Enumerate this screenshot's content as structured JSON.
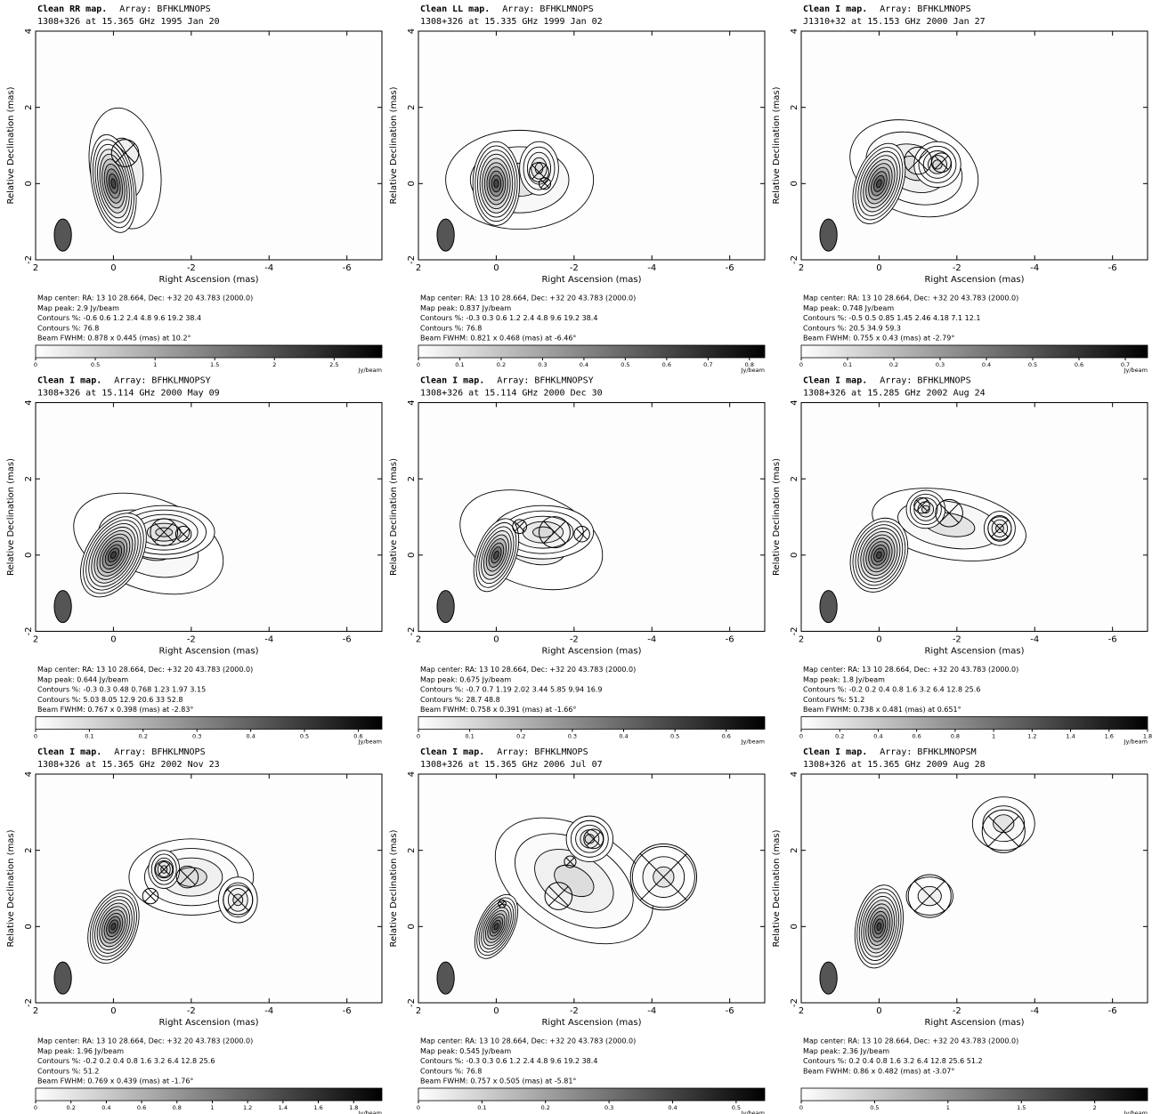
{
  "chart_data": [
    {
      "type": "contour",
      "title": "Clean RR map.",
      "array": "Array:  BFHKLMNOPS",
      "subtitle": "1308+326 at 15.365 GHz 1995 Jan 20",
      "xlabel": "Right Ascension  (mas)",
      "ylabel": "Relative Declination  (mas)",
      "xlim": [
        2,
        -6.9
      ],
      "ylim": [
        -2,
        4
      ],
      "xticks": [
        2,
        0,
        -2,
        -4,
        -6
      ],
      "yticks": [
        -2,
        0,
        2,
        4
      ],
      "info": [
        "Map center:  RA: 13 10 28.664,  Dec: +32 20 43.783 (2000.0)",
        "Map peak: 2.9 Jy/beam",
        "Contours %: -0.6 0.6 1.2 2.4 4.8 9.6 19.2 38.4",
        "Contours %: 76.8",
        "Beam FWHM: 0.878 x 0.445 (mas) at 10.2°"
      ],
      "colorbar": {
        "clim": [
          0,
          2.9
        ],
        "ticks": [
          0,
          0.5,
          1,
          1.5,
          2,
          2.5
        ],
        "unit": "Jy/beam"
      }
    },
    {
      "type": "contour",
      "title": "Clean LL map.",
      "array": "Array:  BFHKLMNOPS",
      "subtitle": "1308+326 at 15.335 GHz 1999 Jan 02",
      "xlabel": "Right Ascension  (mas)",
      "ylabel": "Relative Declination  (mas)",
      "xlim": [
        2,
        -6.9
      ],
      "ylim": [
        -2,
        4
      ],
      "xticks": [
        2,
        0,
        -2,
        -4,
        -6
      ],
      "yticks": [
        -2,
        0,
        2,
        4
      ],
      "info": [
        "Map center:  RA: 13 10 28.664,  Dec: +32 20 43.783 (2000.0)",
        "Map peak: 0.837 Jy/beam",
        "Contours %: -0.3 0.3 0.6 1.2 2.4 4.8 9.6 19.2 38.4",
        "Contours %: 76.8",
        "Beam FWHM: 0.821 x 0.468 (mas) at -6.46°"
      ],
      "colorbar": {
        "clim": [
          0,
          0.837
        ],
        "ticks": [
          0,
          0.1,
          0.2,
          0.3,
          0.4,
          0.5,
          0.6,
          0.7,
          0.8
        ],
        "unit": "Jy/beam"
      }
    },
    {
      "type": "contour",
      "title": "Clean I map.",
      "array": "Array:  BFHKLMNOPS",
      "subtitle": "J1310+32 at 15.153 GHz 2000 Jan 27",
      "xlabel": "Right Ascension  (mas)",
      "ylabel": "Relative Declination  (mas)",
      "xlim": [
        2,
        -6.9
      ],
      "ylim": [
        -2,
        4
      ],
      "xticks": [
        2,
        0,
        -2,
        -4,
        -6
      ],
      "yticks": [
        -2,
        0,
        2,
        4
      ],
      "info": [
        "Map center:  RA: 13 10 28.664,  Dec: +32 20 43.783 (2000.0)",
        "Map peak: 0.748 Jy/beam",
        "Contours %: -0.5 0.5 0.85 1.45 2.46 4.18 7.1 12.1",
        "Contours %: 20.5 34.9 59.3",
        "Beam FWHM: 0.755 x 0.43 (mas) at -2.79°"
      ],
      "colorbar": {
        "clim": [
          0,
          0.748
        ],
        "ticks": [
          0,
          0.1,
          0.2,
          0.3,
          0.4,
          0.5,
          0.6,
          0.7
        ],
        "unit": "Jy/beam"
      }
    },
    {
      "type": "contour",
      "title": "Clean I map.",
      "array": "Array:  BFHKLMNOPSY",
      "subtitle": "1308+326 at 15.114 GHz 2000 May 09",
      "xlabel": "Right Ascension  (mas)",
      "ylabel": "Relative Declination  (mas)",
      "xlim": [
        2,
        -6.9
      ],
      "ylim": [
        -2,
        4
      ],
      "xticks": [
        2,
        0,
        -2,
        -4,
        -6
      ],
      "yticks": [
        -2,
        0,
        2,
        4
      ],
      "info": [
        "Map center:  RA: 13 10 28.664,  Dec: +32 20 43.783 (2000.0)",
        "Map peak: 0.644 Jy/beam",
        "Contours %: -0.3 0.3 0.48 0.768 1.23 1.97 3.15",
        "Contours %: 5.03 8.05 12.9 20.6 33 52.8",
        "Beam FWHM: 0.767 x 0.398 (mas) at -2.83°"
      ],
      "colorbar": {
        "clim": [
          0,
          0.644
        ],
        "ticks": [
          0,
          0.1,
          0.2,
          0.3,
          0.4,
          0.5,
          0.6
        ],
        "unit": "Jy/beam"
      }
    },
    {
      "type": "contour",
      "title": "Clean I map.",
      "array": "Array:  BFHKLMNOPSY",
      "subtitle": "1308+326 at 15.114 GHz 2000 Dec 30",
      "xlabel": "Right Ascension  (mas)",
      "ylabel": "Relative Declination  (mas)",
      "xlim": [
        2,
        -6.9
      ],
      "ylim": [
        -2,
        4
      ],
      "xticks": [
        2,
        0,
        -2,
        -4,
        -6
      ],
      "yticks": [
        -2,
        0,
        2,
        4
      ],
      "info": [
        "Map center:  RA: 13 10 28.664,  Dec: +32 20 43.783 (2000.0)",
        "Map peak: 0.675 Jy/beam",
        "Contours %: -0.7 0.7 1.19 2.02 3.44 5.85 9.94 16.9",
        "Contours %: 28.7 48.8",
        "Beam FWHM: 0.758 x 0.391 (mas) at -1.66°"
      ],
      "colorbar": {
        "clim": [
          0,
          0.675
        ],
        "ticks": [
          0,
          0.1,
          0.2,
          0.3,
          0.4,
          0.5,
          0.6
        ],
        "unit": "Jy/beam"
      }
    },
    {
      "type": "contour",
      "title": "Clean I map.",
      "array": "Array:  BFHKLMNOPS",
      "subtitle": "1308+326 at 15.285 GHz 2002 Aug 24",
      "xlabel": "Right Ascension  (mas)",
      "ylabel": "Relative Declination  (mas)",
      "xlim": [
        2,
        -6.9
      ],
      "ylim": [
        -2,
        4
      ],
      "xticks": [
        2,
        0,
        -2,
        -4,
        -6
      ],
      "yticks": [
        -2,
        0,
        2,
        4
      ],
      "info": [
        "Map center:  RA: 13 10 28.664,  Dec: +32 20 43.783 (2000.0)",
        "Map peak: 1.8 Jy/beam",
        "Contours %: -0.2 0.2 0.4 0.8 1.6 3.2 6.4 12.8 25.6",
        "Contours %: 51.2",
        "Beam FWHM: 0.738 x 0.481 (mas) at 0.651°"
      ],
      "colorbar": {
        "clim": [
          0,
          1.8
        ],
        "ticks": [
          0,
          0.2,
          0.4,
          0.6,
          0.8,
          1,
          1.2,
          1.4,
          1.6,
          1.8
        ],
        "unit": "Jy/beam"
      }
    },
    {
      "type": "contour",
      "title": "Clean I map.",
      "array": "Array:  BFHKLMNOPS",
      "subtitle": "1308+326 at 15.365 GHz 2002 Nov 23",
      "xlabel": "Right Ascension  (mas)",
      "ylabel": "Relative Declination  (mas)",
      "xlim": [
        2,
        -6.9
      ],
      "ylim": [
        -2,
        4
      ],
      "xticks": [
        2,
        0,
        -2,
        -4,
        -6
      ],
      "yticks": [
        -2,
        0,
        2,
        4
      ],
      "info": [
        "Map center:  RA: 13 10 28.664,  Dec: +32 20 43.783 (2000.0)",
        "Map peak: 1.96 Jy/beam",
        "Contours %: -0.2 0.2 0.4 0.8 1.6 3.2 6.4 12.8 25.6",
        "Contours %: 51.2",
        "Beam FWHM: 0.769 x 0.439 (mas) at -1.76°"
      ],
      "colorbar": {
        "clim": [
          0,
          1.96
        ],
        "ticks": [
          0,
          0.2,
          0.4,
          0.6,
          0.8,
          1,
          1.2,
          1.4,
          1.6,
          1.8
        ],
        "unit": "Jy/beam"
      }
    },
    {
      "type": "contour",
      "title": "Clean I map.",
      "array": "Array:  BFHKLMNOPS",
      "subtitle": "1308+326 at 15.365 GHz 2006 Jul 07",
      "xlabel": "Right Ascension  (mas)",
      "ylabel": "Relative Declination  (mas)",
      "xlim": [
        2,
        -6.9
      ],
      "ylim": [
        -2,
        4
      ],
      "xticks": [
        2,
        0,
        -2,
        -4,
        -6
      ],
      "yticks": [
        -2,
        0,
        2,
        4
      ],
      "info": [
        "Map center:  RA: 13 10 28.664,  Dec: +32 20 43.783 (2000.0)",
        "Map peak: 0.545 Jy/beam",
        "Contours %: -0.3 0.3 0.6 1.2 2.4 4.8 9.6 19.2 38.4",
        "Contours %: 76.8",
        "Beam FWHM: 0.757 x 0.505 (mas) at -5.81°"
      ],
      "colorbar": {
        "clim": [
          0,
          0.545
        ],
        "ticks": [
          0,
          0.1,
          0.2,
          0.3,
          0.4,
          0.5
        ],
        "unit": "Jy/beam"
      }
    },
    {
      "type": "contour",
      "title": "Clean I map.",
      "array": "Array:  BFHKLMNOPSM",
      "subtitle": "1308+326 at 15.365 GHz 2009 Aug 28",
      "xlabel": "Right Ascension  (mas)",
      "ylabel": "Relative Declination  (mas)",
      "xlim": [
        2,
        -6.9
      ],
      "ylim": [
        -2,
        4
      ],
      "xticks": [
        2,
        0,
        -2,
        -4,
        -6
      ],
      "yticks": [
        -2,
        0,
        2,
        4
      ],
      "info": [
        "Map center:  RA: 13 10 28.664,  Dec: +32 20 43.783 (2000.0)",
        "Map peak: 2.36 Jy/beam",
        "Contours %: 0.2 0.4 0.8 1.6 3.2 6.4 12.8 25.6 51.2",
        "Beam FWHM: 0.86 x 0.482 (mas) at -3.07°"
      ],
      "colorbar": {
        "clim": [
          0,
          2.36
        ],
        "ticks": [
          0,
          0.5,
          1,
          1.5,
          2
        ],
        "unit": "Jy/beam"
      }
    }
  ]
}
